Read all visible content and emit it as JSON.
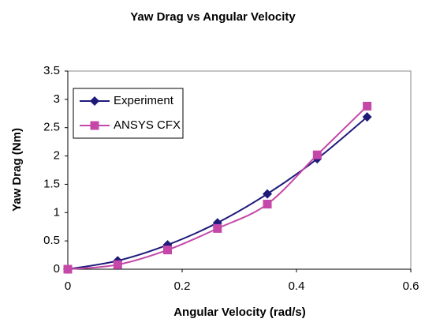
{
  "chart_data": {
    "type": "line",
    "title": "Yaw Drag vs Angular Velocity",
    "xlabel": "Angular Velocity (rad/s)",
    "ylabel": "Yaw Drag (Nm)",
    "x": [
      0,
      0.0873,
      0.1745,
      0.2618,
      0.349,
      0.4363,
      0.5236
    ],
    "series": [
      {
        "name": "Experiment",
        "color": "#1f1a7a",
        "marker": "diamond",
        "values": [
          0,
          0.15,
          0.43,
          0.82,
          1.33,
          1.95,
          2.69
        ]
      },
      {
        "name": "ANSYS CFX",
        "color": "#c548a8",
        "marker": "square",
        "values": [
          0,
          0.08,
          0.34,
          0.72,
          1.15,
          2.02,
          2.88
        ]
      }
    ],
    "xlim": [
      0,
      0.6
    ],
    "xticks": [
      0,
      0.2,
      0.4,
      0.6
    ],
    "ylim": [
      0,
      3.5
    ],
    "yticks": [
      0,
      0.5,
      1,
      1.5,
      2,
      2.5,
      3,
      3.5
    ],
    "grid": false,
    "smooth": true,
    "legend": "upper left"
  }
}
